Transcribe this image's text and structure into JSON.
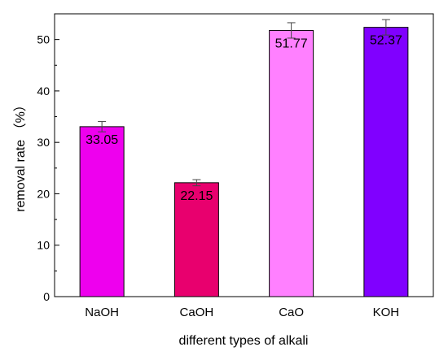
{
  "chart_data": {
    "type": "bar",
    "categories": [
      "NaOH",
      "CaOH",
      "CaO",
      "KOH"
    ],
    "values": [
      33.05,
      22.15,
      51.77,
      52.37
    ],
    "errors": [
      1.0,
      0.6,
      1.5,
      1.5
    ],
    "value_labels": [
      "33.05",
      "22.15",
      "51.77",
      "52.37"
    ],
    "bar_colors": [
      "#EE00EE",
      "#E8006E",
      "#FF80FF",
      "#8000FF"
    ],
    "xlabel": "different types of alkali",
    "ylabel": "removal rate （%）",
    "ylim": [
      0,
      55
    ],
    "yticks": [
      0,
      10,
      20,
      30,
      40,
      50
    ],
    "grid": false,
    "legend": "none"
  }
}
